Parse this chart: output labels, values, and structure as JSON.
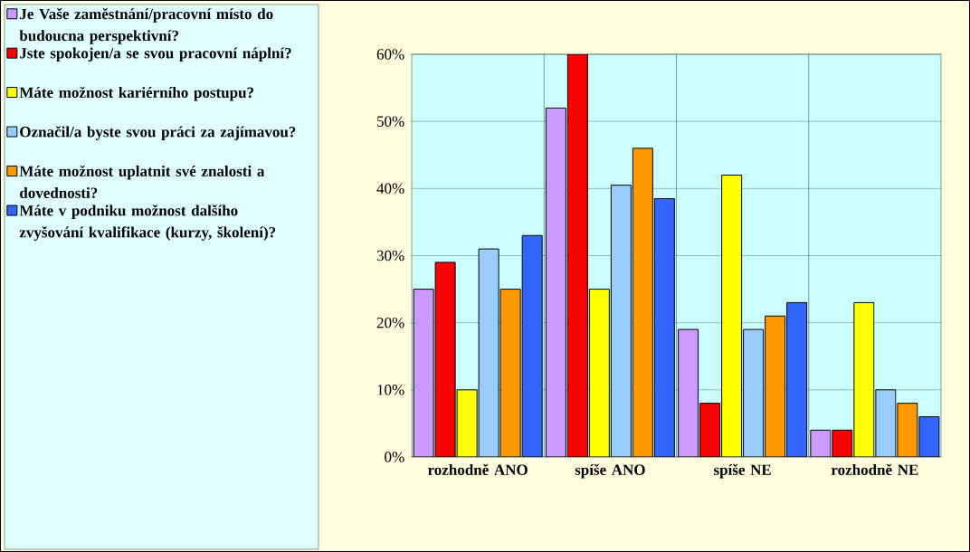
{
  "chart_data": {
    "type": "bar",
    "categories": [
      "rozhodně ANO",
      "spíše ANO",
      "spíše NE",
      "rozhodně NE"
    ],
    "series": [
      {
        "name": "Je Vaše zaměstnání/pracovní místo do budoucna perspektivní?",
        "color": "#cc99ff",
        "values": [
          25,
          52,
          19,
          4
        ]
      },
      {
        "name": "Jste spokojen/a se svou pracovní náplní?",
        "color": "#ff0000",
        "values": [
          29,
          60,
          8,
          4
        ]
      },
      {
        "name": "Máte možnost kariérního postupu?",
        "color": "#ffff00",
        "values": [
          10,
          25,
          42,
          23
        ]
      },
      {
        "name": "Označil/a byste svou práci za zajímavou?",
        "color": "#99ccff",
        "values": [
          31,
          40.5,
          19,
          10
        ]
      },
      {
        "name": "Máte možnost uplatnit své znalosti a dovednosti?",
        "color": "#ff9900",
        "values": [
          25,
          46,
          21,
          8
        ]
      },
      {
        "name": "Máte v podniku možnost dalšího zvyšování kvalifikace (kurzy, školení)?",
        "color": "#3366ff",
        "values": [
          33,
          38.5,
          23,
          6
        ]
      }
    ],
    "ylim": [
      0,
      60
    ],
    "yticks": [
      {
        "value": 0,
        "label": "0%"
      },
      {
        "value": 10,
        "label": "10%"
      },
      {
        "value": 20,
        "label": "20%"
      },
      {
        "value": 30,
        "label": "30%"
      },
      {
        "value": 40,
        "label": "40%"
      },
      {
        "value": 50,
        "label": "50%"
      },
      {
        "value": 60,
        "label": "60%"
      }
    ],
    "grid": true,
    "legend": "left"
  }
}
